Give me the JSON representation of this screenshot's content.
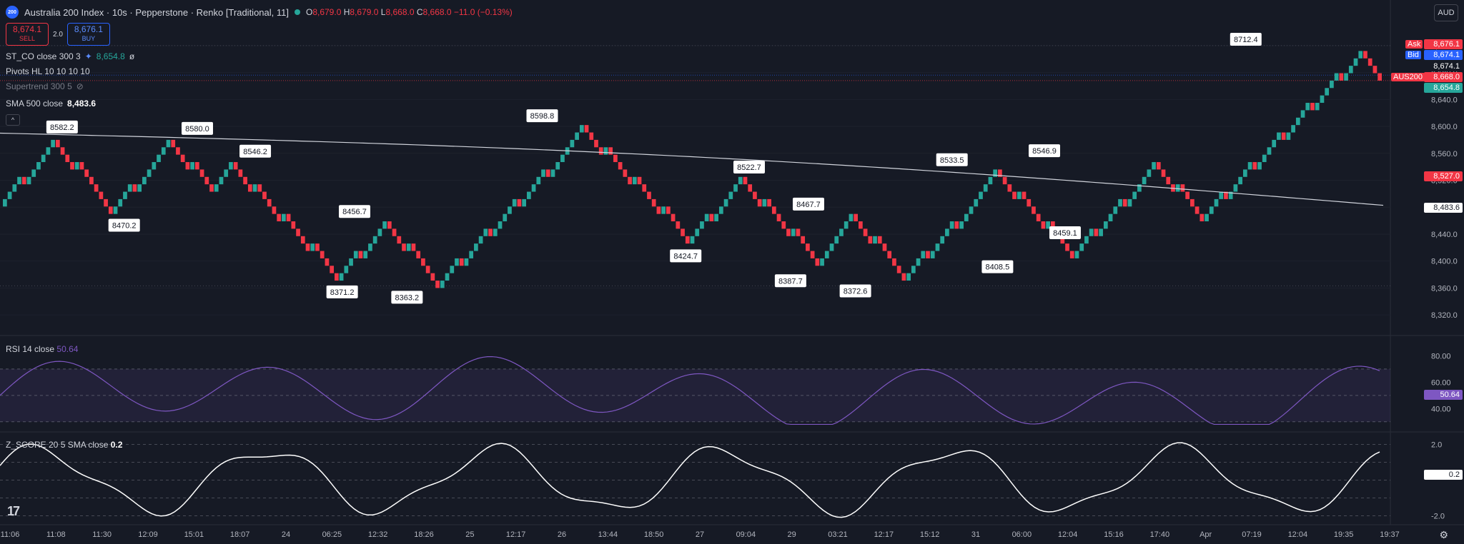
{
  "header": {
    "logo_text": "200",
    "title": "Australia 200 Index · 10s · Pepperstone · Renko [Traditional, 11]",
    "open_label": "O",
    "open": "8,679.0",
    "high_label": "H",
    "high": "8,679.0",
    "low_label": "L",
    "low": "8,668.0",
    "close_label": "C",
    "close": "8,668.0",
    "change": "−11.0 (−0.13%)",
    "currency": "AUD"
  },
  "trade": {
    "sell_price": "8,674.1",
    "sell_label": "SELL",
    "spread": "2.0",
    "buy_price": "8,676.1",
    "buy_label": "BUY"
  },
  "indicators": {
    "st_co": "ST_CO close 300 3",
    "st_co_value": "8,654.8",
    "st_co_extra": "ø",
    "pivots": "Pivots HL 10 10 10 10",
    "supertrend": "Supertrend 300 5",
    "sma": "SMA 500 close",
    "sma_value": "8,483.6",
    "collapse_icon": "^"
  },
  "price_axis": {
    "ticks": [
      "8,720.0",
      "8,680.0",
      "8,640.0",
      "8,600.0",
      "8,560.0",
      "8,520.0",
      "8,480.0",
      "8,440.0",
      "8,400.0",
      "8,360.0",
      "8,320.0"
    ],
    "ask_label": "Ask",
    "ask_value": "8,676.1",
    "bid_label": "Bid",
    "bid_value": "8,674.1",
    "last_value": "8,674.1",
    "symbol_tag": "AUS200",
    "close_value": "8,668.0",
    "st_value": "8,654.8",
    "red_line_value": "8,527.0",
    "sma_value": "8,483.6",
    "colors": {
      "ask": "#f23645",
      "bid": "#2962ff",
      "close": "#f23645",
      "st": "#26a69a",
      "sma": "#ffffff"
    }
  },
  "pivot_labels": [
    "8582.2",
    "8470.2",
    "8580.0",
    "8546.2",
    "8456.7",
    "8371.2",
    "8363.2",
    "8598.8",
    "8424.7",
    "8522.7",
    "8467.7",
    "8387.7",
    "8372.6",
    "8533.5",
    "8408.5",
    "8546.9",
    "8459.1",
    "8712.4"
  ],
  "rsi": {
    "label": "RSI 14 close",
    "value": "50.64",
    "ticks": [
      "80.00",
      "60.00",
      "40.00"
    ],
    "color": "#7e57c2"
  },
  "zscore": {
    "label": "Z_SCORE 20 5 SMA close",
    "value": "0.2",
    "ticks": [
      "2.0",
      "-2.0"
    ],
    "current": "0.2"
  },
  "time_axis": [
    "11:06",
    "11:08",
    "11:30",
    "12:09",
    "15:01",
    "18:07",
    "24",
    "06:25",
    "12:32",
    "18:26",
    "25",
    "12:17",
    "26",
    "13:44",
    "18:50",
    "27",
    "09:04",
    "29",
    "03:21",
    "12:17",
    "15:12",
    "31",
    "06:00",
    "12:04",
    "15:16",
    "17:40",
    "Apr",
    "07:19",
    "12:04",
    "19:35",
    "19:37"
  ],
  "chart_data": {
    "type": "renko",
    "brick_size": 11,
    "y_range": [
      8300,
      8740
    ],
    "pivots": [
      {
        "label": 8582.2,
        "kind": "high"
      },
      {
        "label": 8470.2,
        "kind": "low"
      },
      {
        "label": 8580.0,
        "kind": "high"
      },
      {
        "label": 8546.2,
        "kind": "high"
      },
      {
        "label": 8456.7,
        "kind": "high"
      },
      {
        "label": 8371.2,
        "kind": "low"
      },
      {
        "label": 8363.2,
        "kind": "low"
      },
      {
        "label": 8598.8,
        "kind": "high"
      },
      {
        "label": 8424.7,
        "kind": "low"
      },
      {
        "label": 8522.7,
        "kind": "high"
      },
      {
        "label": 8467.7,
        "kind": "high"
      },
      {
        "label": 8387.7,
        "kind": "low"
      },
      {
        "label": 8372.6,
        "kind": "low"
      },
      {
        "label": 8533.5,
        "kind": "high"
      },
      {
        "label": 8408.5,
        "kind": "low"
      },
      {
        "label": 8546.9,
        "kind": "high"
      },
      {
        "label": 8459.1,
        "kind": "low"
      },
      {
        "label": 8712.4,
        "kind": "high"
      }
    ],
    "sma_500_last": 8483.6,
    "rsi_range": [
      25,
      90
    ],
    "zscore_range": [
      -2.3,
      2.3
    ]
  }
}
